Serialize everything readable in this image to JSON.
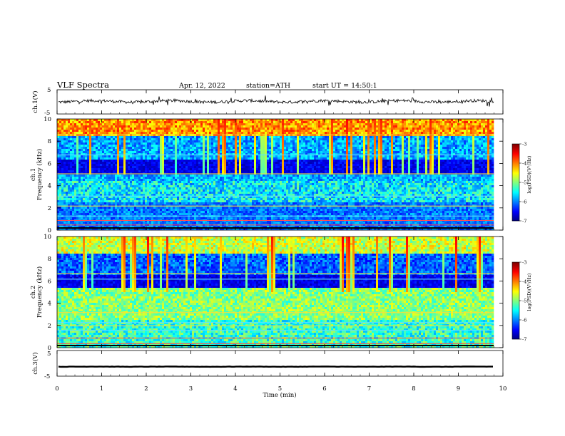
{
  "header": {
    "title": "VLF Spectra",
    "date": "Apr. 12, 2022",
    "station": "station=ATH",
    "start": "start UT = 14:50:1"
  },
  "chart_data": [
    {
      "type": "line",
      "ylabel": "ch.1(V)",
      "ylim": [
        -5,
        5
      ],
      "yticks": [
        "5",
        "-5"
      ],
      "xlim": [
        0,
        10
      ],
      "series": [
        {
          "baseline": 0.2,
          "noise": 0.6
        }
      ]
    },
    {
      "type": "heatmap",
      "ylabel": "ch.1\nFrequency (kHz)",
      "ylabel_lines": [
        "ch.1",
        "Frequency (kHz)"
      ],
      "ylim": [
        0,
        10
      ],
      "yticks": [
        "0",
        "2",
        "4",
        "6",
        "8",
        "10"
      ],
      "xlim": [
        0,
        10
      ],
      "colorbar": {
        "label": "log(PSD)(V²/Hz)",
        "range": [
          -7,
          -3
        ],
        "ticks": [
          "-3",
          "-4",
          "-5",
          "-6",
          "-7"
        ]
      }
    },
    {
      "type": "heatmap",
      "ylabel": "ch.2\nFrequency (kHz)",
      "ylabel_lines": [
        "ch.2",
        "Frequency (kHz)"
      ],
      "ylim": [
        0,
        10
      ],
      "yticks": [
        "0",
        "2",
        "4",
        "6",
        "8",
        "10"
      ],
      "xlim": [
        0,
        10
      ],
      "colorbar": {
        "label": "log(PSD)(V²/Hz)",
        "range": [
          -7,
          -3
        ],
        "ticks": [
          "-3",
          "-4",
          "-5",
          "-6",
          "-7"
        ]
      }
    },
    {
      "type": "line",
      "ylabel": "ch.3(V)",
      "ylim": [
        -5,
        5
      ],
      "yticks": [
        "5",
        "-5"
      ],
      "xlim": [
        0,
        10
      ],
      "xlabel": "Time (min)",
      "xticks": [
        "0",
        "1",
        "2",
        "3",
        "4",
        "5",
        "6",
        "7",
        "8",
        "9",
        "10"
      ],
      "series": [
        {
          "baseline": -1.3,
          "noise": 0.05
        }
      ]
    }
  ]
}
